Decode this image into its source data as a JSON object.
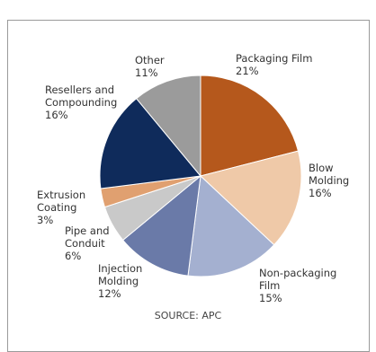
{
  "chart_data": {
    "type": "pie",
    "categories": [
      "Packaging Film",
      "Blow Molding",
      "Non-packaging Film",
      "Injection Molding",
      "Pipe and Conduit",
      "Extrusion Coating",
      "Resellers and Compounding",
      "Other"
    ],
    "values": [
      21,
      16,
      15,
      12,
      6,
      3,
      16,
      11
    ],
    "value_labels": [
      "21%",
      "16%",
      "15%",
      "12%",
      "6%",
      "3%",
      "16%",
      "11%"
    ],
    "colors": [
      "#b5581c",
      "#efc9a8",
      "#a4b0d0",
      "#6a7aa8",
      "#c9c9c9",
      "#e0a070",
      "#0f2b5b",
      "#9b9b9b"
    ],
    "source": "SOURCE: APC"
  }
}
